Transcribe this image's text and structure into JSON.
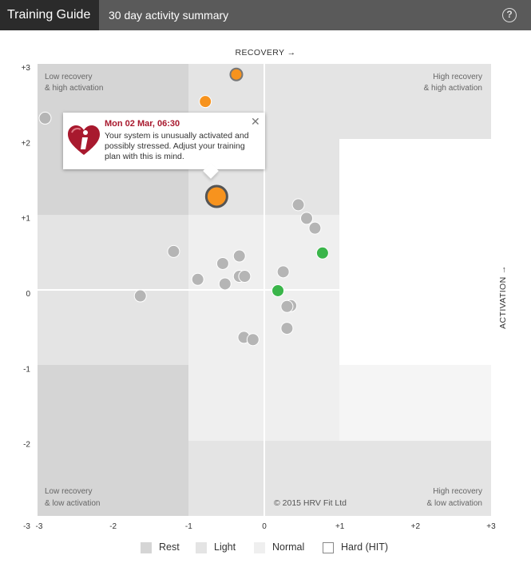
{
  "header": {
    "brand": "Training Guide",
    "subtitle": "30 day activity summary",
    "help_icon": "question-circle-icon",
    "help_glyph": "?"
  },
  "axes": {
    "x_label": "RECOVERY →",
    "y_label": "ACTIVATION →"
  },
  "quadrants": {
    "top_left": [
      "Low recovery",
      "& high activation"
    ],
    "top_right": [
      "High recovery",
      "& high activation"
    ],
    "bottom_left": [
      "Low recovery",
      "& low activation"
    ],
    "bottom_right": [
      "High recovery",
      "& low activation"
    ]
  },
  "copyright": "© 2015 HRV Fit Ltd",
  "tooltip": {
    "icon": "heart-info-icon",
    "title": "Mon 02 Mar, 06:30",
    "text": "Your system is unusually activated and possibly stressed. Adjust your training plan with this is mind.",
    "close_icon": "close-icon",
    "close_glyph": "✕"
  },
  "legend": [
    {
      "label": "Rest",
      "color": "#d5d5d5"
    },
    {
      "label": "Light",
      "color": "#e4e4e4"
    },
    {
      "label": "Normal",
      "color": "#efefef"
    },
    {
      "label": "Hard (HIT)",
      "color": "#ffffff"
    }
  ],
  "colors": {
    "zone_rest": "#d5d5d5",
    "zone_light": "#e4e4e4",
    "zone_normal": "#efefef",
    "zone_hard": "#ffffff",
    "point_gray": "#b5b5b5",
    "point_orange": "#f7931e",
    "point_green": "#3ab54a"
  },
  "chart_data": {
    "type": "scatter",
    "xlim": [
      -3,
      3
    ],
    "ylim": [
      -3,
      3
    ],
    "x_ticks": [
      "-3",
      "-2",
      "-1",
      "0",
      "+1",
      "+2",
      "+3"
    ],
    "y_ticks": [
      "+3",
      "+2",
      "+1",
      "0",
      "-1",
      "-2"
    ],
    "y_bottom_tick": "-3",
    "grid": false,
    "legend_position": "bottom",
    "points": [
      {
        "x": -2.9,
        "y": 2.28,
        "color": "gray"
      },
      {
        "x": -0.37,
        "y": 2.86,
        "color": "orange",
        "outlined": true
      },
      {
        "x": -0.78,
        "y": 2.5,
        "color": "orange"
      },
      {
        "x": -0.63,
        "y": 1.24,
        "color": "orange",
        "highlighted": true
      },
      {
        "x": 0.45,
        "y": 1.13,
        "color": "gray"
      },
      {
        "x": 0.56,
        "y": 0.95,
        "color": "gray"
      },
      {
        "x": 0.67,
        "y": 0.82,
        "color": "gray"
      },
      {
        "x": 0.77,
        "y": 0.49,
        "color": "green"
      },
      {
        "x": -1.2,
        "y": 0.51,
        "color": "gray"
      },
      {
        "x": -0.33,
        "y": 0.45,
        "color": "gray"
      },
      {
        "x": -0.55,
        "y": 0.35,
        "color": "gray"
      },
      {
        "x": 0.25,
        "y": 0.24,
        "color": "gray"
      },
      {
        "x": -0.88,
        "y": 0.14,
        "color": "gray"
      },
      {
        "x": -0.33,
        "y": 0.18,
        "color": "gray"
      },
      {
        "x": -0.26,
        "y": 0.18,
        "color": "gray"
      },
      {
        "x": -0.52,
        "y": 0.08,
        "color": "gray"
      },
      {
        "x": 0.18,
        "y": -0.01,
        "color": "green"
      },
      {
        "x": -1.64,
        "y": -0.08,
        "color": "gray"
      },
      {
        "x": 0.35,
        "y": -0.21,
        "color": "gray"
      },
      {
        "x": 0.3,
        "y": -0.22,
        "color": "gray"
      },
      {
        "x": 0.3,
        "y": -0.51,
        "color": "gray"
      },
      {
        "x": -0.27,
        "y": -0.63,
        "color": "gray"
      },
      {
        "x": -0.15,
        "y": -0.66,
        "color": "gray"
      }
    ]
  }
}
